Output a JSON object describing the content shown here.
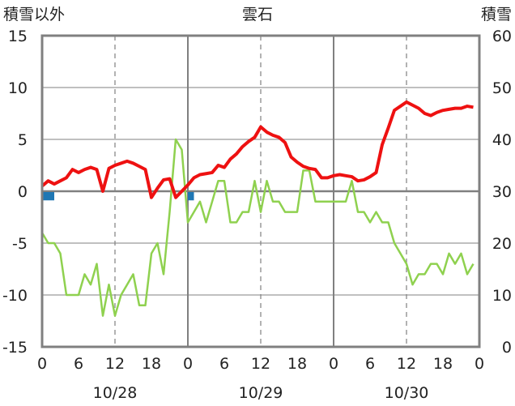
{
  "chart_data": {
    "type": "line",
    "title": "雲石",
    "left_axis_label": "積雪以外",
    "right_axis_label": "積雪",
    "left_ylim": [
      -15,
      15
    ],
    "left_yticks": [
      "15",
      "10",
      "5",
      "0",
      "-5",
      "-10",
      "-15"
    ],
    "right_ylim": [
      0,
      60
    ],
    "right_yticks": [
      "60",
      "50",
      "40",
      "30",
      "20",
      "10",
      "0"
    ],
    "xlim": [
      0,
      72
    ],
    "x_hour_ticks": [
      "0",
      "6",
      "12",
      "18",
      "0",
      "6",
      "12",
      "18",
      "0",
      "6",
      "12",
      "18",
      "0"
    ],
    "x_date_labels": [
      {
        "label": "10/28",
        "at_hour": 12
      },
      {
        "label": "10/29",
        "at_hour": 36
      },
      {
        "label": "10/30",
        "at_hour": 60
      }
    ],
    "grid": true,
    "colors": {
      "temperature": "#ee1111",
      "green_series": "#8fd14f",
      "blue_bars": "#1f77b4",
      "snow_depth": "#7030a0",
      "axis": "#808080"
    },
    "series": [
      {
        "key": "temperature",
        "axis": "left",
        "values": [
          0.5,
          1.0,
          0.7,
          1.0,
          1.3,
          2.1,
          1.8,
          2.1,
          2.3,
          2.1,
          0.0,
          2.2,
          2.5,
          2.7,
          2.9,
          2.7,
          2.4,
          2.1,
          -0.6,
          0.3,
          1.1,
          1.2,
          -0.6,
          0.0,
          0.6,
          1.3,
          1.6,
          1.7,
          1.8,
          2.5,
          2.3,
          3.1,
          3.6,
          4.3,
          4.8,
          5.2,
          6.2,
          5.7,
          5.4,
          5.2,
          4.7,
          3.3,
          2.8,
          2.4,
          2.2,
          2.1,
          1.3,
          1.3,
          1.5,
          1.6,
          1.5,
          1.4,
          1.0,
          1.1,
          1.4,
          1.8,
          4.5,
          6.1,
          7.8,
          8.2,
          8.6,
          8.3,
          8.0,
          7.5,
          7.3,
          7.6,
          7.8,
          7.9,
          8.0,
          8.0,
          8.2,
          8.1
        ]
      },
      {
        "key": "green_series",
        "axis": "left",
        "values": [
          -4,
          -5,
          -5,
          -6,
          -10,
          -10,
          -10,
          -8,
          -9,
          -7,
          -12,
          -9,
          -12,
          -10,
          -9,
          -8,
          -11,
          -11,
          -6,
          -5,
          -8,
          -2,
          5,
          4,
          -3,
          -2,
          -1,
          -3,
          -1,
          1,
          1,
          -3,
          -3,
          -2,
          -2,
          1,
          -2,
          1,
          -1,
          -1,
          -2,
          -2,
          -2,
          2,
          2,
          -1,
          -1,
          -1,
          -1,
          -1,
          -1,
          1,
          -2,
          -2,
          -3,
          -2,
          -3,
          -3,
          -5,
          -6,
          -7,
          -9,
          -8,
          -8,
          -7,
          -7,
          -8,
          -6,
          -7,
          -6,
          -8,
          -7
        ]
      },
      {
        "key": "blue_bars",
        "axis": "left",
        "type": "bar",
        "values": [
          {
            "x": 0.5,
            "value": -0.8
          },
          {
            "x": 1.5,
            "value": -0.8
          },
          {
            "x": 24.5,
            "value": -0.8
          }
        ]
      },
      {
        "key": "snow_depth",
        "axis": "right",
        "values": [
          0,
          0
        ]
      }
    ]
  }
}
